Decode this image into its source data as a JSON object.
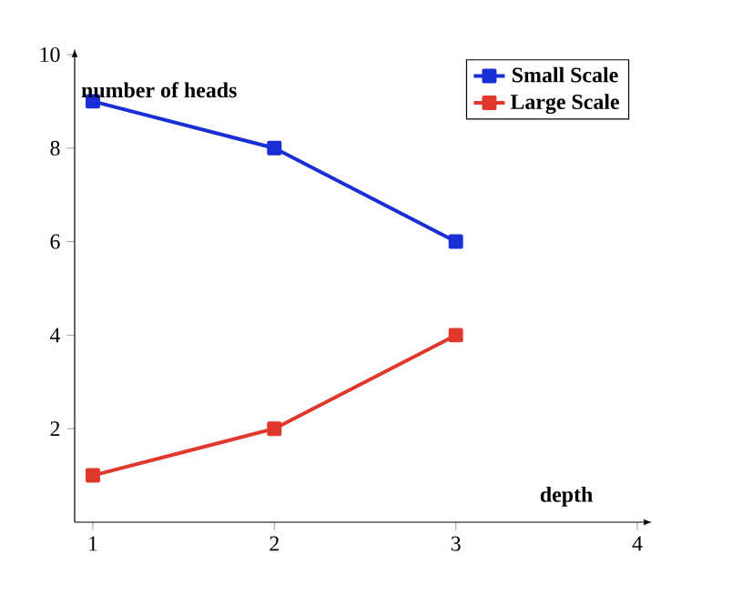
{
  "chart_data": {
    "type": "line",
    "xlabel": "depth",
    "ylabel": "number of heads",
    "x": [
      1,
      2,
      3
    ],
    "series": [
      {
        "name": "Small Scale",
        "color": "#1a2ed6",
        "values": [
          9,
          8,
          6
        ]
      },
      {
        "name": "Large Scale",
        "color": "#e0382c",
        "values": [
          1,
          2,
          4
        ]
      }
    ],
    "xlim": [
      0.9,
      4.05
    ],
    "ylim": [
      0,
      10
    ],
    "xticks": [
      1,
      2,
      3,
      4
    ],
    "yticks": [
      2,
      4,
      6,
      8,
      10
    ],
    "marker": "square",
    "line_style": "solid",
    "legend": "top right"
  }
}
